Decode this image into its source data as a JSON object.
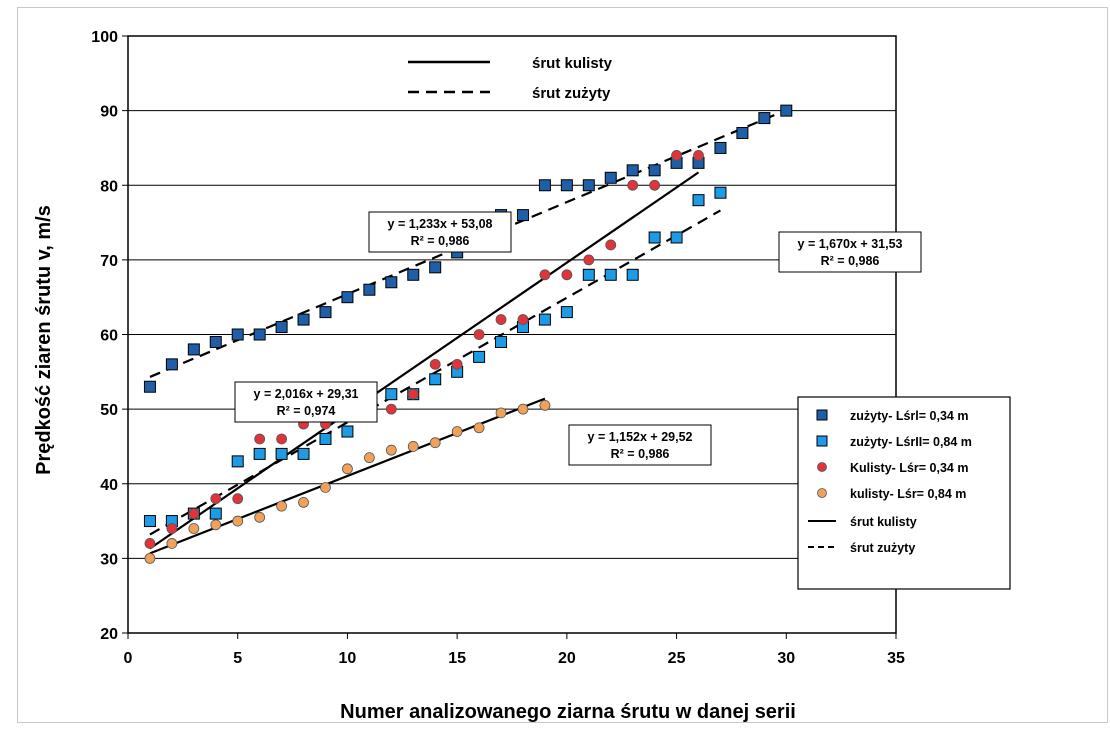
{
  "chart_data": {
    "type": "scatter",
    "xlabel": "Numer analizowanego ziarna śrutu w danej serii",
    "ylabel": "Prędkość ziaren śrutu v, m/s",
    "xlim": [
      0,
      35
    ],
    "ylim": [
      20,
      100
    ],
    "x_ticks": [
      0,
      5,
      10,
      15,
      20,
      25,
      30,
      35
    ],
    "y_ticks": [
      20,
      30,
      40,
      50,
      60,
      70,
      80,
      90,
      100
    ],
    "grid": true,
    "legend_placement": "right",
    "top_legend": [
      {
        "label": "śrut kulisty",
        "style": "solid"
      },
      {
        "label": "śrut zużyty",
        "style": "dashed"
      }
    ],
    "series": [
      {
        "name": "zużyty- Lśrl= 0,34 m",
        "marker": "square",
        "color": "#1f5fa8",
        "x": [
          1,
          2,
          3,
          4,
          5,
          6,
          7,
          8,
          9,
          10,
          11,
          12,
          13,
          14,
          15,
          16,
          17,
          18,
          19,
          20,
          21,
          22,
          23,
          24,
          25,
          26,
          27,
          28,
          29,
          30
        ],
        "y": [
          53,
          56,
          58,
          59,
          60,
          60,
          61,
          62,
          63,
          65,
          66,
          67,
          68,
          69,
          71,
          74,
          76,
          76,
          80,
          80,
          80,
          81,
          82,
          82,
          83,
          83,
          85,
          87,
          89,
          90
        ]
      },
      {
        "name": "zużyty- LśrII= 0,84 m",
        "marker": "square",
        "color": "#1e9be6",
        "x": [
          1,
          2,
          3,
          4,
          5,
          6,
          7,
          8,
          9,
          10,
          11,
          12,
          13,
          14,
          15,
          16,
          17,
          18,
          19,
          20,
          21,
          22,
          23,
          24,
          25,
          26,
          27
        ],
        "y": [
          35,
          35,
          36,
          36,
          43,
          44,
          44,
          44,
          46,
          47,
          51,
          52,
          52,
          54,
          55,
          57,
          59,
          61,
          62,
          63,
          68,
          68,
          68,
          73,
          73,
          78,
          79
        ]
      },
      {
        "name": "Kulisty- Lśr= 0,34 m",
        "marker": "circle",
        "color": "#e0343a",
        "x": [
          1,
          2,
          3,
          4,
          5,
          6,
          7,
          8,
          9,
          10,
          11,
          12,
          13,
          14,
          15,
          16,
          17,
          18,
          19,
          20,
          21,
          22,
          23,
          24,
          25,
          26
        ],
        "y": [
          32,
          34,
          36,
          38,
          38,
          46,
          46,
          48,
          48,
          50,
          50,
          50,
          52,
          56,
          56,
          60,
          62,
          62,
          68,
          68,
          70,
          72,
          80,
          80,
          84,
          84
        ]
      },
      {
        "name": "kulisty- Lśr= 0,84 m",
        "marker": "circle",
        "color": "#f0a25a",
        "x": [
          1,
          2,
          3,
          4,
          5,
          6,
          7,
          8,
          9,
          10,
          11,
          12,
          13,
          14,
          15,
          16,
          17,
          18,
          19
        ],
        "y": [
          30,
          32,
          34,
          34.5,
          35,
          35.5,
          37,
          37.5,
          39.5,
          42,
          43.5,
          44.5,
          45,
          45.5,
          47,
          47.5,
          49.5,
          50,
          50.5
        ]
      }
    ],
    "trendlines": [
      {
        "for": "zużyty- Lśrl= 0,34 m",
        "style": "dashed",
        "slope": 1.233,
        "intercept": 53.08,
        "x_range": [
          1,
          30
        ],
        "equation": "y = 1,233x + 53,08",
        "r2": "R² = 0,986"
      },
      {
        "for": "zużyty- LśrII= 0,84 m",
        "style": "dashed",
        "slope": 1.67,
        "intercept": 31.53,
        "x_range": [
          1,
          27
        ],
        "equation": "y = 1,670x + 31,53",
        "r2": "R² = 0,986"
      },
      {
        "for": "Kulisty- Lśr= 0,34 m",
        "style": "solid",
        "slope": 2.016,
        "intercept": 29.31,
        "x_range": [
          1,
          26
        ],
        "equation": "y = 2,016x + 29,31",
        "r2": "R² = 0,974"
      },
      {
        "for": "kulisty- Lśr= 0,84 m",
        "style": "solid",
        "slope": 1.152,
        "intercept": 29.52,
        "x_range": [
          1,
          19
        ],
        "equation": "y = 1,152x + 29,52",
        "r2": "R² = 0,986"
      }
    ],
    "legend_lines": [
      {
        "label": "śrut kulisty",
        "style": "solid"
      },
      {
        "label": "śrut zużyty",
        "style": "dashed"
      }
    ]
  }
}
